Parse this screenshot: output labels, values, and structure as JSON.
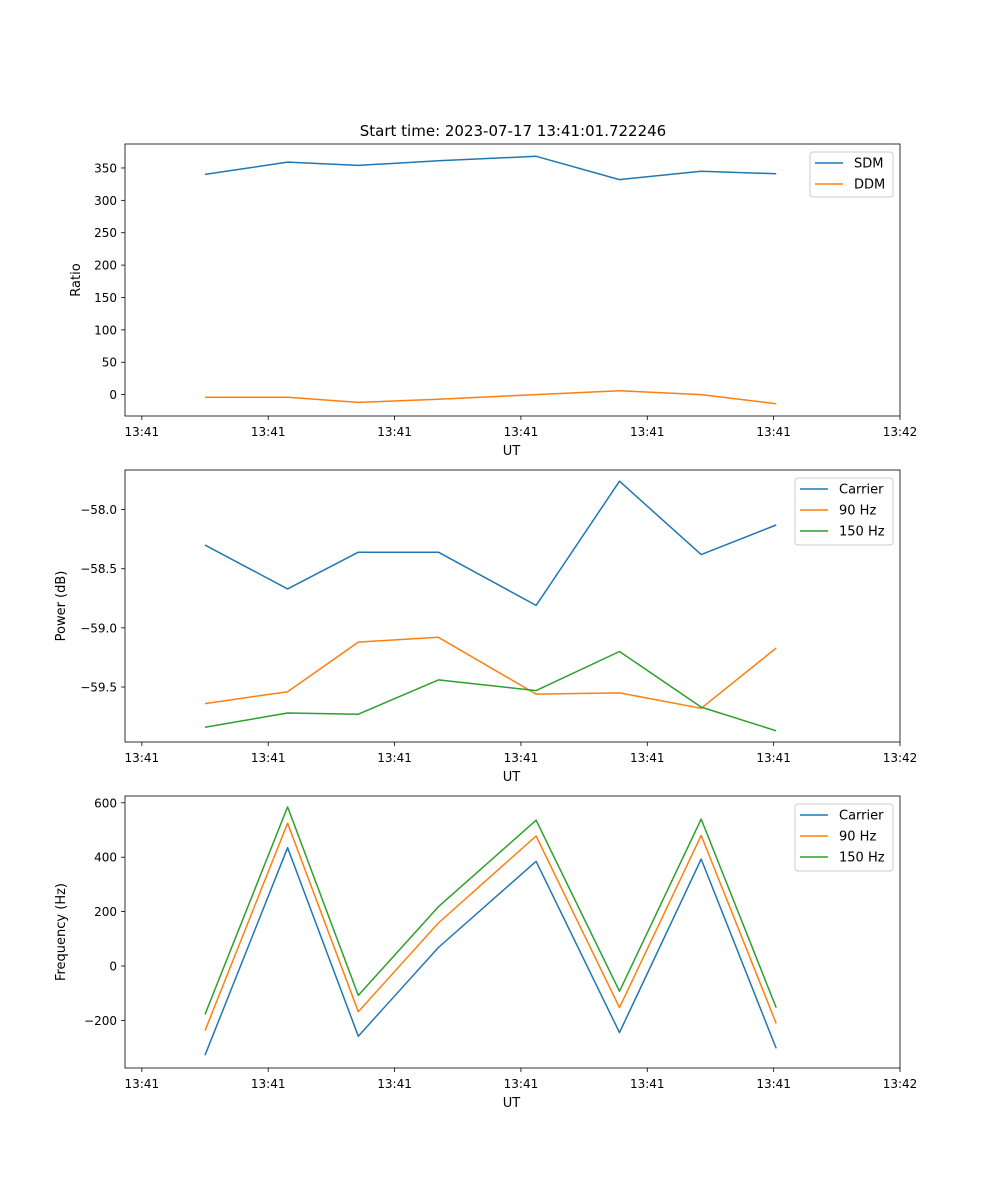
{
  "title": "Start time: 2023-07-17 13:41:01.722246",
  "colors": {
    "blue": "#1f77b4",
    "orange": "#ff7f0e",
    "green": "#2ca02c",
    "axis": "#000000"
  },
  "chart_data": [
    {
      "type": "line",
      "title": "Start time: 2023-07-17 13:41:01.722246",
      "xlabel": "UT",
      "ylabel": "Ratio",
      "xlim": [
        0,
        9.2
      ],
      "xticks": [
        0.2,
        1.7,
        3.2,
        4.7,
        6.2,
        7.7,
        9.2
      ],
      "xticklabels": [
        "13:41",
        "13:41",
        "13:41",
        "13:41",
        "13:41",
        "13:41",
        "13:42"
      ],
      "ylim": [
        -33,
        387
      ],
      "yticks": [
        0,
        50,
        100,
        150,
        200,
        250,
        300,
        350
      ],
      "yticklabels": [
        "0",
        "50",
        "100",
        "150",
        "200",
        "250",
        "300",
        "350"
      ],
      "legend": "top-right",
      "x": [
        0.95,
        1.93,
        2.77,
        3.72,
        4.88,
        5.87,
        6.84,
        7.73
      ],
      "series": [
        {
          "name": "SDM",
          "color": "#1f77b4",
          "values": [
            340,
            359,
            354,
            361,
            368,
            332,
            345,
            341
          ]
        },
        {
          "name": "DDM",
          "color": "#ff7f0e",
          "values": [
            -4,
            -4,
            -12,
            -7,
            0,
            6,
            0,
            -14
          ]
        }
      ]
    },
    {
      "type": "line",
      "xlabel": "UT",
      "ylabel": "Power (dB)",
      "xlim": [
        0,
        9.2
      ],
      "xticks": [
        0.2,
        1.7,
        3.2,
        4.7,
        6.2,
        7.7,
        9.2
      ],
      "xticklabels": [
        "13:41",
        "13:41",
        "13:41",
        "13:41",
        "13:41",
        "13:41",
        "13:42"
      ],
      "ylim": [
        -59.965,
        -57.665
      ],
      "yticks": [
        -59.5,
        -59.0,
        -58.5,
        -58.0
      ],
      "yticklabels": [
        "−59.5",
        "−59.0",
        "−58.5",
        "−58.0"
      ],
      "legend": "top-right",
      "x": [
        0.95,
        1.93,
        2.77,
        3.72,
        4.88,
        5.87,
        6.84,
        7.73
      ],
      "series": [
        {
          "name": "Carrier",
          "color": "#1f77b4",
          "values": [
            -58.3,
            -58.67,
            -58.36,
            -58.36,
            -58.81,
            -57.76,
            -58.38,
            -58.13
          ]
        },
        {
          "name": "90 Hz",
          "color": "#ff7f0e",
          "values": [
            -59.64,
            -59.54,
            -59.12,
            -59.08,
            -59.56,
            -59.55,
            -59.68,
            -59.17
          ]
        },
        {
          "name": "150 Hz",
          "color": "#2ca02c",
          "values": [
            -59.84,
            -59.72,
            -59.73,
            -59.44,
            -59.53,
            -59.2,
            -59.67,
            -59.87
          ]
        }
      ]
    },
    {
      "type": "line",
      "xlabel": "UT",
      "ylabel": "Frequency (Hz)",
      "xlim": [
        0,
        9.2
      ],
      "xticks": [
        0.2,
        1.7,
        3.2,
        4.7,
        6.2,
        7.7,
        9.2
      ],
      "xticklabels": [
        "13:41",
        "13:41",
        "13:41",
        "13:41",
        "13:41",
        "13:41",
        "13:42"
      ],
      "ylim": [
        -375,
        625
      ],
      "yticks": [
        -200,
        0,
        200,
        400,
        600
      ],
      "yticklabels": [
        "−200",
        "0",
        "200",
        "400",
        "600"
      ],
      "legend": "top-right",
      "x": [
        0.95,
        1.93,
        2.77,
        3.72,
        4.88,
        5.87,
        6.84,
        7.73
      ],
      "series": [
        {
          "name": "Carrier",
          "color": "#1f77b4",
          "values": [
            -328,
            435,
            -258,
            68,
            385,
            -245,
            393,
            -303
          ]
        },
        {
          "name": "90 Hz",
          "color": "#ff7f0e",
          "values": [
            -238,
            525,
            -168,
            158,
            478,
            -153,
            480,
            -211
          ]
        },
        {
          "name": "150 Hz",
          "color": "#2ca02c",
          "values": [
            -178,
            585,
            -108,
            218,
            536,
            -93,
            540,
            -153
          ]
        }
      ]
    }
  ]
}
